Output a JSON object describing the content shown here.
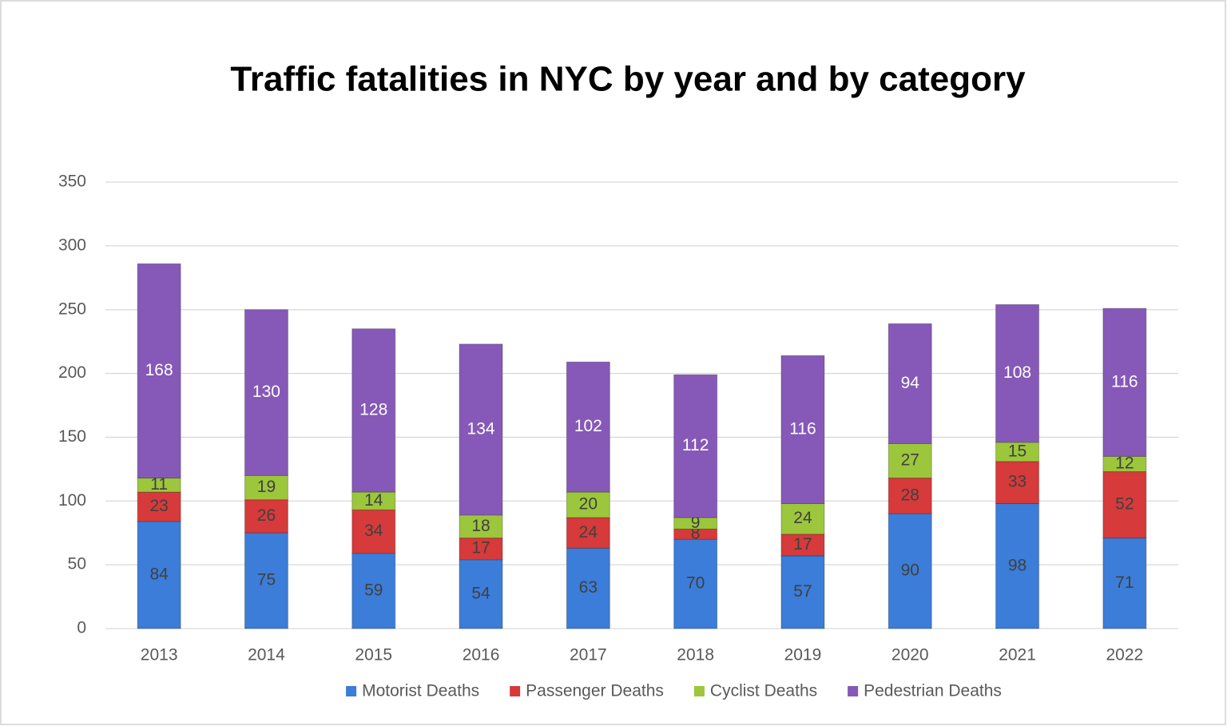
{
  "chart_data": {
    "type": "stacked_bar",
    "title": "Traffic fatalities in NYC by year and by category",
    "categories": [
      "2013",
      "2014",
      "2015",
      "2016",
      "2017",
      "2018",
      "2019",
      "2020",
      "2021",
      "2022"
    ],
    "series": [
      {
        "name": "Motorist Deaths",
        "color": "#3b7dd8",
        "values": [
          84,
          75,
          59,
          54,
          63,
          70,
          57,
          90,
          98,
          71
        ]
      },
      {
        "name": "Passenger Deaths",
        "color": "#d63a3a",
        "values": [
          23,
          26,
          34,
          17,
          24,
          8,
          17,
          28,
          33,
          52
        ]
      },
      {
        "name": "Cyclist Deaths",
        "color": "#9cc63c",
        "values": [
          11,
          19,
          14,
          18,
          20,
          9,
          24,
          27,
          15,
          12
        ]
      },
      {
        "name": "Pedestrian Deaths",
        "color": "#8659b8",
        "values": [
          168,
          130,
          128,
          134,
          102,
          112,
          116,
          94,
          108,
          116
        ]
      }
    ],
    "ylim": [
      0,
      350
    ],
    "yticks": [
      0,
      50,
      100,
      150,
      200,
      250,
      300,
      350
    ],
    "grid": true,
    "legend": "bottom"
  }
}
